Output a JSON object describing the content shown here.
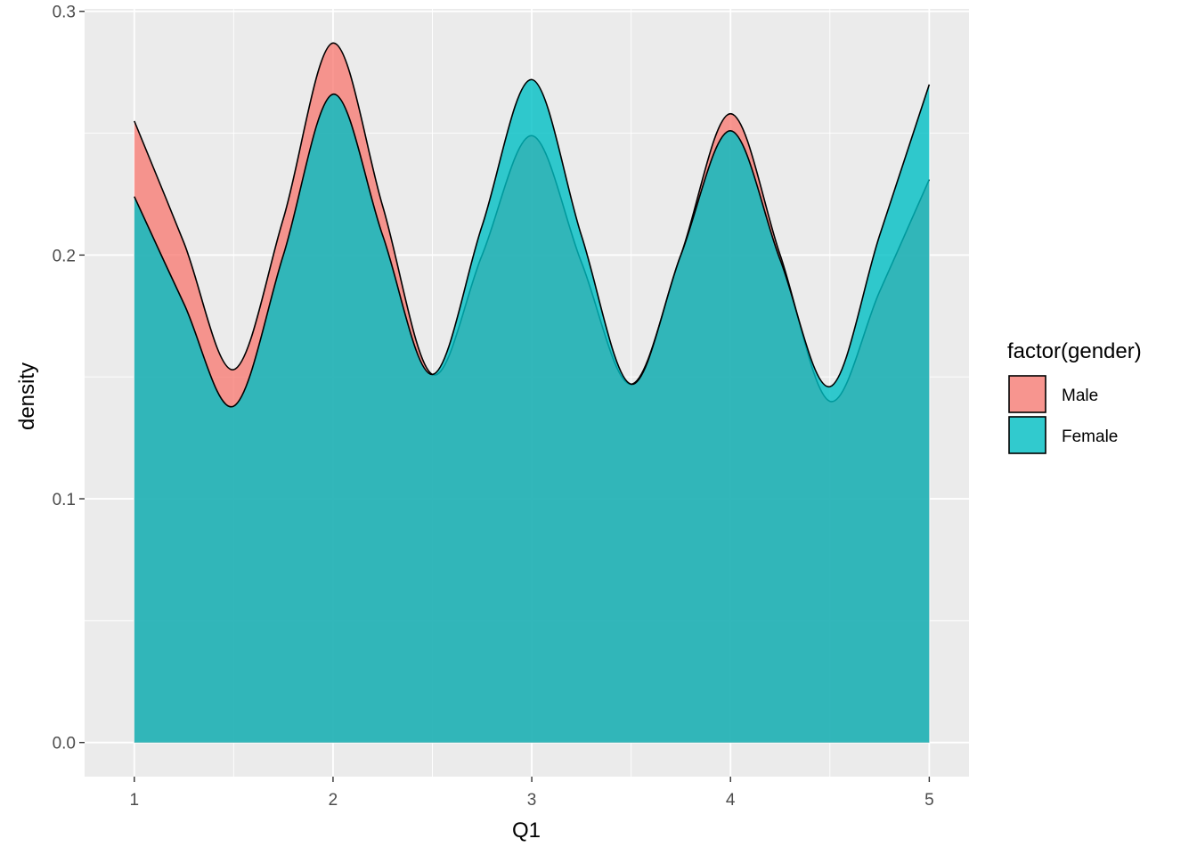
{
  "chart_data": {
    "type": "area",
    "subtype": "density",
    "xlabel": "Q1",
    "ylabel": "density",
    "xlim": [
      0.75,
      5.2
    ],
    "ylim": [
      -0.014,
      0.301
    ],
    "x_ticks": [
      1,
      2,
      3,
      4,
      5
    ],
    "x_tick_labels": [
      "1",
      "2",
      "3",
      "4",
      "5"
    ],
    "y_ticks": [
      0.0,
      0.1,
      0.2,
      0.3
    ],
    "y_tick_labels": [
      "0.0",
      "0.1",
      "0.2",
      "0.3"
    ],
    "grid": true,
    "legend": {
      "title": "factor(gender)",
      "position": "right",
      "entries": [
        "Male",
        "Female"
      ]
    },
    "series": [
      {
        "name": "Male",
        "color": "#F8766D",
        "fill_alpha": 0.75,
        "x": [
          1.0,
          1.25,
          1.5,
          1.75,
          2.0,
          2.25,
          2.5,
          2.75,
          3.0,
          3.25,
          3.5,
          3.75,
          4.0,
          4.25,
          4.5,
          4.75,
          5.0
        ],
        "values": [
          0.255,
          0.205,
          0.153,
          0.215,
          0.287,
          0.22,
          0.151,
          0.2,
          0.249,
          0.197,
          0.147,
          0.2,
          0.258,
          0.2,
          0.14,
          0.185,
          0.231
        ]
      },
      {
        "name": "Female",
        "color": "#00BFC4",
        "fill_alpha": 0.8,
        "x": [
          1.0,
          1.25,
          1.5,
          1.75,
          2.0,
          2.25,
          2.5,
          2.75,
          3.0,
          3.25,
          3.5,
          3.75,
          4.0,
          4.25,
          4.5,
          4.75,
          5.0
        ],
        "values": [
          0.224,
          0.18,
          0.138,
          0.2,
          0.266,
          0.208,
          0.151,
          0.212,
          0.272,
          0.208,
          0.147,
          0.2,
          0.251,
          0.198,
          0.146,
          0.208,
          0.27
        ]
      }
    ]
  },
  "colors": {
    "panel_background": "#EBEBEB",
    "grid_major": "#FFFFFF",
    "outline": "#000000"
  }
}
